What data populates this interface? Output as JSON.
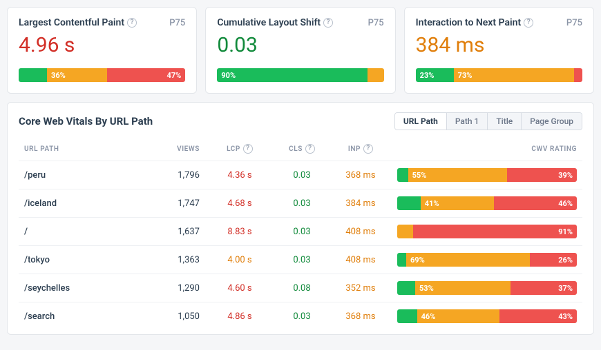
{
  "colors": {
    "good": "#1abc5b",
    "needs_improvement": "#f5a623",
    "poor": "#ee524f",
    "lcp_value": "#d22f27",
    "cls_value": "#118a3b",
    "inp_value": "#e07e0a"
  },
  "p75_label": "P75",
  "metrics": [
    {
      "key": "lcp",
      "title": "Largest Contentful Paint",
      "value": "4.96 s",
      "value_color": "#d22f27",
      "segments": {
        "good": 17,
        "ni": 36,
        "poor": 47
      },
      "labels": {
        "ni": "36%",
        "poor": "47%"
      }
    },
    {
      "key": "cls",
      "title": "Cumulative Layout Shift",
      "value": "0.03",
      "value_color": "#118a3b",
      "segments": {
        "good": 90,
        "ni": 10,
        "poor": 0
      },
      "labels": {
        "good": "90%"
      }
    },
    {
      "key": "inp",
      "title": "Interaction to Next Paint",
      "value": "384 ms",
      "value_color": "#e07e0a",
      "segments": {
        "good": 23,
        "ni": 73,
        "poor": 4
      },
      "labels": {
        "good": "23%",
        "ni": "73%"
      }
    }
  ],
  "table": {
    "title": "Core Web Vitals By URL Path",
    "tabs": [
      "URL Path",
      "Path 1",
      "Title",
      "Page Group"
    ],
    "active_tab": 0,
    "headers": {
      "url": "URL PATH",
      "views": "VIEWS",
      "lcp": "LCP",
      "cls": "CLS",
      "inp": "INP",
      "rating": "CWV RATING"
    },
    "rows": [
      {
        "path": "/peru",
        "views": "1,796",
        "lcp": "4.36 s",
        "lcp_color": "#d22f27",
        "cls": "0.03",
        "cls_color": "#118a3b",
        "inp": "368 ms",
        "inp_color": "#e07e0a",
        "segments": {
          "good": 6,
          "ni": 55,
          "poor": 39
        },
        "labels": {
          "ni": "55%",
          "poor": "39%"
        }
      },
      {
        "path": "/iceland",
        "views": "1,747",
        "lcp": "4.68 s",
        "lcp_color": "#d22f27",
        "cls": "0.03",
        "cls_color": "#118a3b",
        "inp": "384 ms",
        "inp_color": "#e07e0a",
        "segments": {
          "good": 13,
          "ni": 41,
          "poor": 46
        },
        "labels": {
          "ni": "41%",
          "poor": "46%"
        }
      },
      {
        "path": "/",
        "views": "1,637",
        "lcp": "8.83 s",
        "lcp_color": "#d22f27",
        "cls": "0.03",
        "cls_color": "#118a3b",
        "inp": "408 ms",
        "inp_color": "#e07e0a",
        "segments": {
          "good": 0,
          "ni": 9,
          "poor": 91
        },
        "labels": {
          "poor": "91%"
        }
      },
      {
        "path": "/tokyo",
        "views": "1,363",
        "lcp": "4.00 s",
        "lcp_color": "#e07e0a",
        "cls": "0.03",
        "cls_color": "#118a3b",
        "inp": "408 ms",
        "inp_color": "#e07e0a",
        "segments": {
          "good": 5,
          "ni": 69,
          "poor": 26
        },
        "labels": {
          "ni": "69%",
          "poor": "26%"
        }
      },
      {
        "path": "/seychelles",
        "views": "1,290",
        "lcp": "4.60 s",
        "lcp_color": "#d22f27",
        "cls": "0.08",
        "cls_color": "#118a3b",
        "inp": "352 ms",
        "inp_color": "#e07e0a",
        "segments": {
          "good": 10,
          "ni": 53,
          "poor": 37
        },
        "labels": {
          "ni": "53%",
          "poor": "37%"
        }
      },
      {
        "path": "/search",
        "views": "1,050",
        "lcp": "4.86 s",
        "lcp_color": "#d22f27",
        "cls": "0.03",
        "cls_color": "#118a3b",
        "inp": "368 ms",
        "inp_color": "#e07e0a",
        "segments": {
          "good": 11,
          "ni": 46,
          "poor": 43
        },
        "labels": {
          "ni": "46%",
          "poor": "43%"
        }
      }
    ]
  }
}
